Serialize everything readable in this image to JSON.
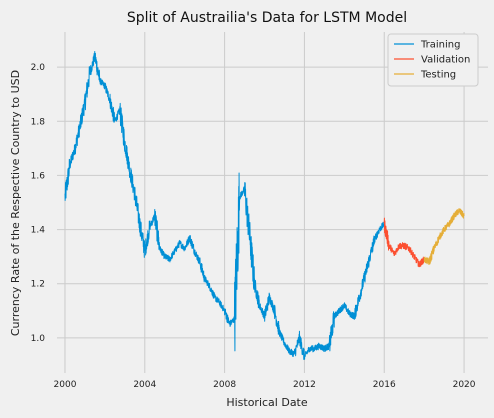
{
  "chart_data": {
    "type": "line",
    "title": "Split of Austrailia's Data for LSTM Model",
    "xlabel": "Historical Date",
    "ylabel": "Currency Rate of the Respective Country to USD",
    "xlim": [
      1999.6,
      2021.2
    ],
    "ylim": [
      0.87,
      2.13
    ],
    "x_ticks": [
      2000,
      2004,
      2008,
      2012,
      2016,
      2020
    ],
    "x_tick_labels": [
      "2000",
      "2004",
      "2008",
      "2012",
      "2016",
      "2020"
    ],
    "y_ticks": [
      1.0,
      1.2,
      1.4,
      1.6,
      1.8,
      2.0
    ],
    "y_tick_labels": [
      "1.0",
      "1.2",
      "1.4",
      "1.6",
      "1.8",
      "2.0"
    ],
    "grid": true,
    "legend_position": "top-right",
    "series": [
      {
        "name": "Training",
        "color": "#008fd5",
        "x": [
          2000.0,
          2000.25,
          2000.5,
          2000.75,
          2001.0,
          2001.25,
          2001.5,
          2001.75,
          2002.0,
          2002.25,
          2002.5,
          2002.75,
          2003.0,
          2003.25,
          2003.5,
          2003.75,
          2004.0,
          2004.25,
          2004.5,
          2004.75,
          2005.0,
          2005.25,
          2005.5,
          2005.75,
          2006.0,
          2006.25,
          2006.5,
          2006.75,
          2007.0,
          2007.25,
          2007.5,
          2007.75,
          2008.0,
          2008.25,
          2008.5,
          2008.75,
          2009.0,
          2009.25,
          2009.5,
          2009.75,
          2010.0,
          2010.25,
          2010.5,
          2010.75,
          2011.0,
          2011.25,
          2011.5,
          2011.75,
          2012.0,
          2012.25,
          2012.5,
          2012.75,
          2013.0,
          2013.25,
          2013.5,
          2013.75,
          2014.0,
          2014.25,
          2014.5,
          2014.75,
          2015.0,
          2015.25,
          2015.5,
          2015.75,
          2016.0
        ],
        "y": [
          1.52,
          1.64,
          1.7,
          1.78,
          1.87,
          1.98,
          2.04,
          1.95,
          1.93,
          1.88,
          1.8,
          1.84,
          1.72,
          1.62,
          1.53,
          1.42,
          1.32,
          1.41,
          1.45,
          1.33,
          1.3,
          1.29,
          1.32,
          1.35,
          1.33,
          1.37,
          1.32,
          1.28,
          1.22,
          1.19,
          1.15,
          1.13,
          1.1,
          1.05,
          1.07,
          1.52,
          1.55,
          1.38,
          1.2,
          1.12,
          1.08,
          1.15,
          1.1,
          1.02,
          0.98,
          0.95,
          0.94,
          1.0,
          0.93,
          0.96,
          0.96,
          0.97,
          0.96,
          0.97,
          1.08,
          1.1,
          1.12,
          1.09,
          1.08,
          1.15,
          1.22,
          1.29,
          1.36,
          1.4,
          1.42
        ]
      },
      {
        "name": "Validation",
        "color": "#fc4f30",
        "x": [
          2016.0,
          2016.25,
          2016.5,
          2016.75,
          2017.0,
          2017.25,
          2017.5,
          2017.75,
          2018.0
        ],
        "y": [
          1.42,
          1.34,
          1.31,
          1.34,
          1.34,
          1.33,
          1.3,
          1.27,
          1.29
        ]
      },
      {
        "name": "Testing",
        "color": "#e5ae38",
        "x": [
          2018.0,
          2018.25,
          2018.5,
          2018.75,
          2019.0,
          2019.25,
          2019.5,
          2019.75,
          2020.0
        ],
        "y": [
          1.29,
          1.28,
          1.33,
          1.37,
          1.4,
          1.42,
          1.45,
          1.47,
          1.45
        ]
      }
    ]
  }
}
